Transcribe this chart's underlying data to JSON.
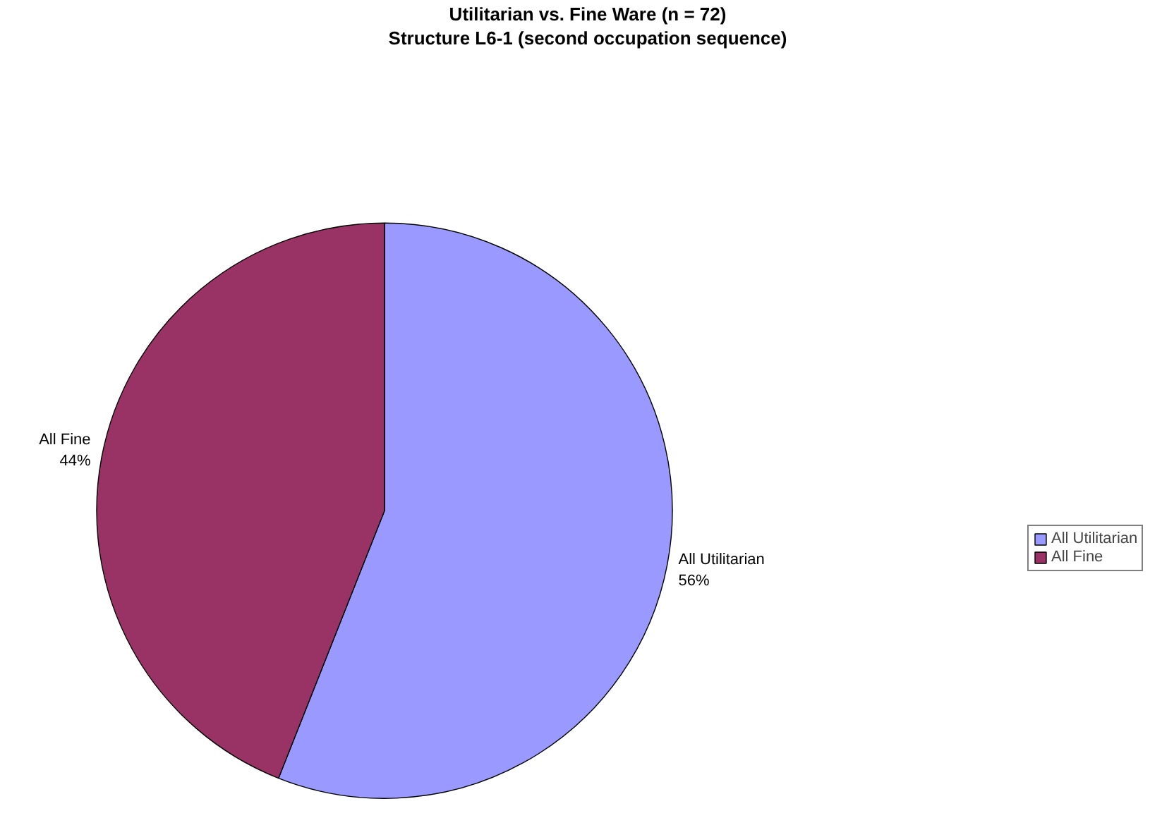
{
  "chart_data": {
    "type": "pie",
    "title": "Utilitarian vs. Fine Ware (n = 72)",
    "subtitle": "Structure L6-1 (second occupation sequence)",
    "categories": [
      "All Utilitarian",
      "All Fine"
    ],
    "values": [
      56,
      44
    ],
    "colors": [
      "#9999ff",
      "#993366"
    ],
    "value_labels": [
      "56%",
      "44%"
    ],
    "legend": "right"
  }
}
